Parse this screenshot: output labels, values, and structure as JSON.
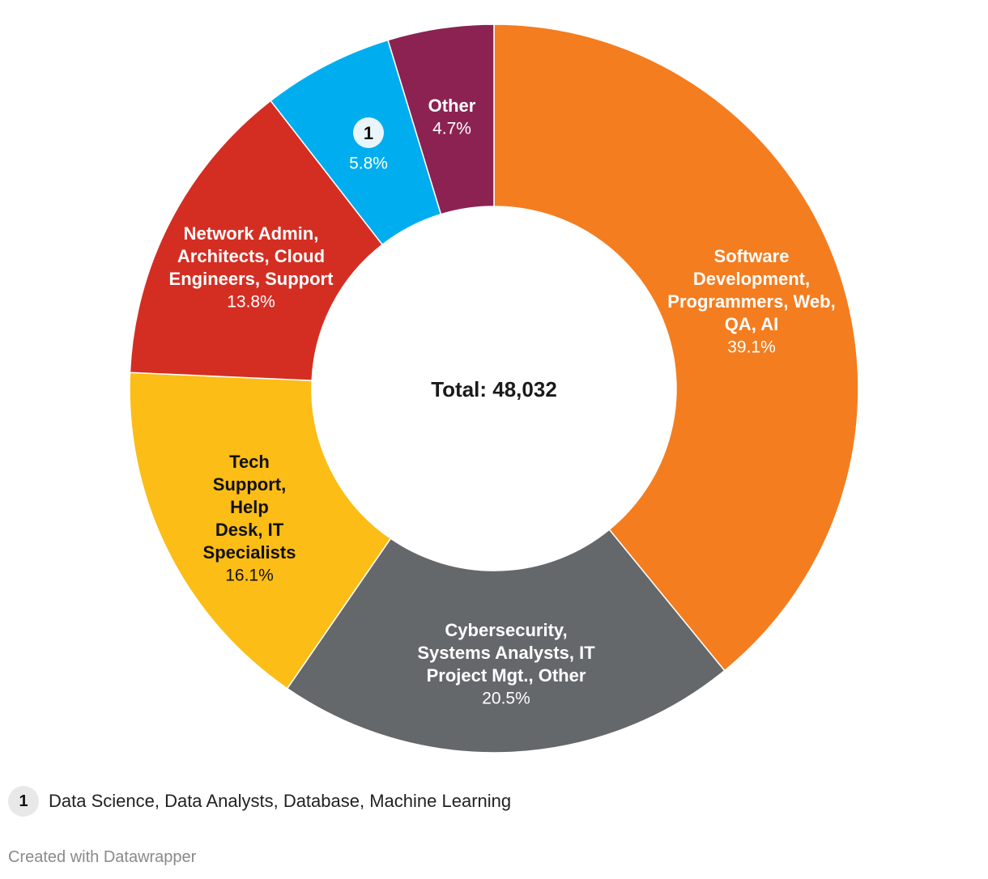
{
  "chart_data": {
    "type": "pie",
    "center_label": "Total: 48,032",
    "slices": [
      {
        "label_lines": [
          "Software",
          "Development,",
          "Programmers, Web,",
          "QA, AI"
        ],
        "value_text": "39.1%",
        "value": 39.1,
        "color": "#f47d20",
        "text_color": "#ffffff"
      },
      {
        "label_lines": [
          "Cybersecurity,",
          "Systems Analysts, IT",
          "Project Mgt., Other"
        ],
        "value_text": "20.5%",
        "value": 20.5,
        "color": "#65686a",
        "text_color": "#ffffff"
      },
      {
        "label_lines": [
          "Tech",
          "Support,",
          "Help",
          "Desk, IT",
          "Specialists"
        ],
        "value_text": "16.1%",
        "value": 16.1,
        "color": "#fbbd16",
        "text_color": "#111111"
      },
      {
        "label_lines": [
          "Network Admin,",
          "Architects, Cloud",
          "Engineers, Support"
        ],
        "value_text": "13.8%",
        "value": 13.8,
        "color": "#d42e23",
        "text_color": "#ffffff"
      },
      {
        "label_lines": [],
        "badge": "1",
        "value_text": "5.8%",
        "value": 5.8,
        "color": "#00adee",
        "text_color": "#ffffff"
      },
      {
        "label_lines": [
          "Other"
        ],
        "value_text": "4.7%",
        "value": 4.7,
        "color": "#8b2252",
        "text_color": "#ffffff"
      }
    ]
  },
  "footnote": {
    "marker": "1",
    "text": "Data Science, Data Analysts, Database, Machine Learning"
  },
  "credit": "Created with Datawrapper"
}
